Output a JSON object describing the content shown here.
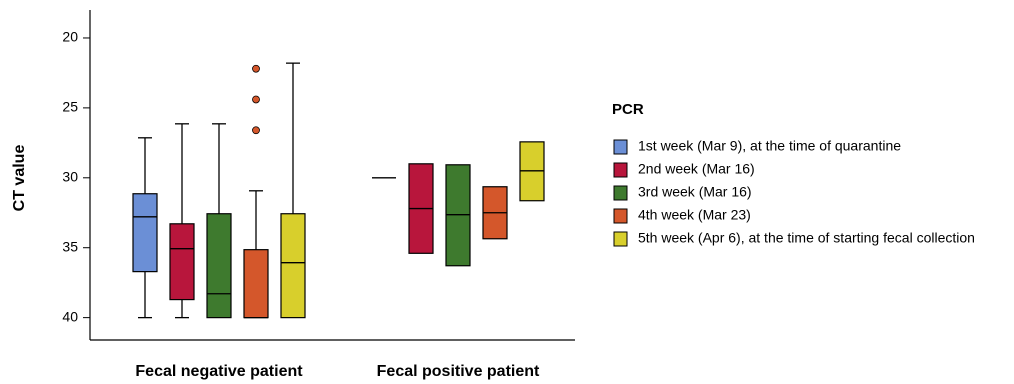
{
  "chart_data": {
    "type": "box",
    "y_label": "CT value",
    "categories": [
      "Fecal negative patient",
      "Fecal positive patient"
    ],
    "ylim": [
      18,
      41.6
    ],
    "y_inverted": true,
    "yticks": [
      20,
      25,
      30,
      35,
      40
    ],
    "legend_title": "PCR",
    "legend": "right",
    "series": [
      {
        "name": "1st week (Mar 9), at the time of quarantine",
        "color": "#6b8fd6",
        "low": [
          27.14,
          30
        ],
        "q1": [
          31.14,
          30
        ],
        "median": [
          32.79,
          30
        ],
        "q3": [
          36.71,
          30
        ],
        "high": [
          40,
          30
        ],
        "outliers": [
          [],
          []
        ]
      },
      {
        "name": "2nd week (Mar 16)",
        "color": "#b8163c",
        "low": [
          26.14,
          29
        ],
        "q1": [
          33.29,
          29
        ],
        "median": [
          35.07,
          32.2
        ],
        "q3": [
          38.71,
          35.4
        ],
        "high": [
          40,
          35.4
        ],
        "outliers": [
          [],
          []
        ]
      },
      {
        "name": "3rd week (Mar 16)",
        "color": "#3e7a2e",
        "low": [
          26.14,
          29.07
        ],
        "q1": [
          32.57,
          29.07
        ],
        "median": [
          38.29,
          32.64
        ],
        "q3": [
          40,
          36.29
        ],
        "high": [
          40,
          36.29
        ],
        "outliers": [
          [],
          []
        ]
      },
      {
        "name": "4th week (Mar 23)",
        "color": "#d4572b",
        "low": [
          30.93,
          30.64
        ],
        "q1": [
          35.14,
          30.64
        ],
        "median": [
          40,
          32.5
        ],
        "q3": [
          40,
          34.36
        ],
        "high": [
          40,
          34.36
        ],
        "outliers": [
          [
            22.2,
            24.4,
            26.6
          ],
          []
        ]
      },
      {
        "name": "5th week (Apr 6), at the time of starting fecal collection",
        "color": "#d8cf2c",
        "low": [
          21.8,
          27.43
        ],
        "q1": [
          32.57,
          27.43
        ],
        "median": [
          36.07,
          29.5
        ],
        "q3": [
          40,
          31.64
        ],
        "high": [
          40,
          31.64
        ],
        "outliers": [
          [],
          []
        ]
      }
    ]
  }
}
